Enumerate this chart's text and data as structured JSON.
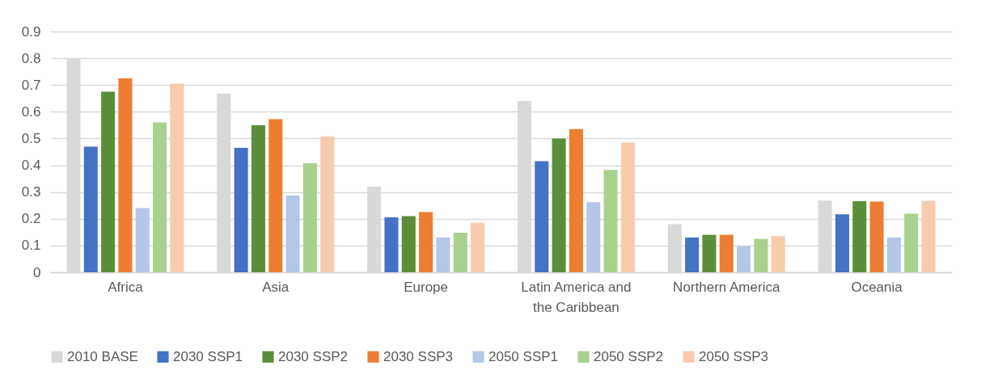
{
  "chart_data": {
    "type": "bar",
    "categories": [
      "Africa",
      "Asia",
      "Europe",
      "Latin America and the Caribbean",
      "Northern America",
      "Oceania"
    ],
    "series": [
      {
        "name": "2010 BASE",
        "color": "#d9d9d9",
        "values": [
          0.8,
          0.668,
          0.32,
          0.64,
          0.18,
          0.268
        ]
      },
      {
        "name": "2030 SSP1",
        "color": "#4472c4",
        "values": [
          0.47,
          0.465,
          0.205,
          0.415,
          0.13,
          0.217
        ]
      },
      {
        "name": "2030 SSP2",
        "color": "#5b8e3a",
        "values": [
          0.675,
          0.55,
          0.21,
          0.5,
          0.14,
          0.266
        ]
      },
      {
        "name": "2030 SSP3",
        "color": "#ed7d31",
        "values": [
          0.725,
          0.572,
          0.225,
          0.535,
          0.14,
          0.264
        ]
      },
      {
        "name": "2050 SSP1",
        "color": "#b4c7e7",
        "values": [
          0.24,
          0.287,
          0.13,
          0.262,
          0.097,
          0.13
        ]
      },
      {
        "name": "2050 SSP2",
        "color": "#a9d18e",
        "values": [
          0.56,
          0.408,
          0.148,
          0.383,
          0.125,
          0.219
        ]
      },
      {
        "name": "2050 SSP3",
        "color": "#f8cbad",
        "values": [
          0.705,
          0.508,
          0.185,
          0.485,
          0.135,
          0.267
        ]
      }
    ],
    "ylim": [
      0,
      0.9
    ],
    "yticks": [
      0,
      0.1,
      0.2,
      0.3,
      0.4,
      0.5,
      0.6,
      0.7,
      0.8,
      0.9
    ],
    "grid": "y",
    "legend": "bottom"
  }
}
